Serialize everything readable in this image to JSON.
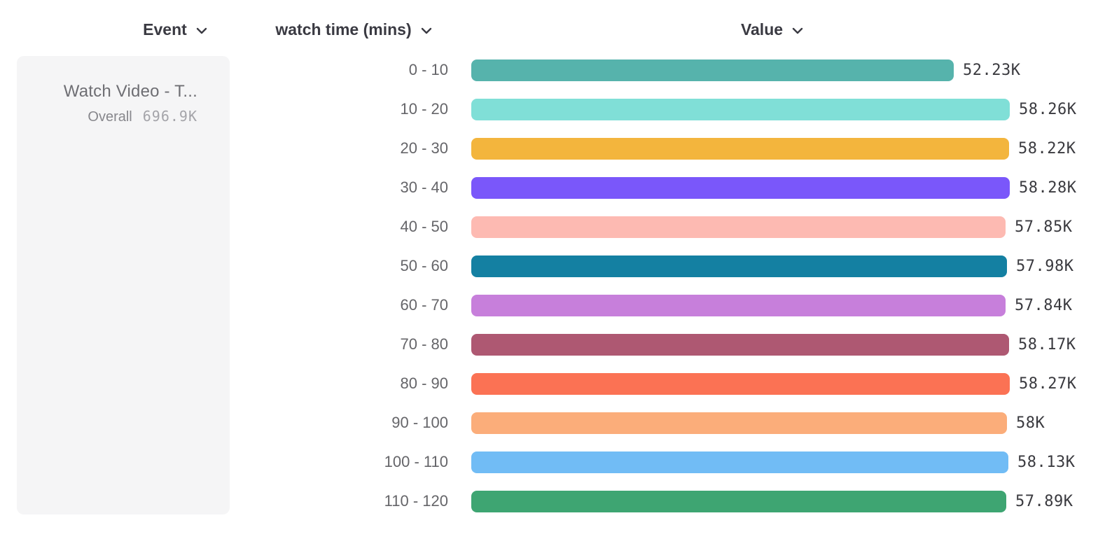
{
  "header": {
    "columns": [
      {
        "id": "event",
        "label": "Event",
        "icon": "chevron-down-icon"
      },
      {
        "id": "breakdown",
        "label": "watch time (mins)",
        "icon": "chevron-down-icon"
      },
      {
        "id": "value",
        "label": "Value",
        "icon": "chevron-down-icon"
      }
    ]
  },
  "legend": {
    "event_name": "Watch Video - T...",
    "overall_label": "Overall",
    "overall_value": "696.9K"
  },
  "chart_data": {
    "type": "bar",
    "orientation": "horizontal",
    "title": "",
    "xlabel": "Value",
    "ylabel": "watch time (mins)",
    "grid": false,
    "legend_position": "left",
    "xlim": [
      0,
      58.28
    ],
    "unit": "K",
    "categories": [
      "0 - 10",
      "10 - 20",
      "20 - 30",
      "30 - 40",
      "40 - 50",
      "50 - 60",
      "60 - 70",
      "70 - 80",
      "80 - 90",
      "90 - 100",
      "100 - 110",
      "110 - 120"
    ],
    "values": [
      52.23,
      58.26,
      58.22,
      58.28,
      57.85,
      57.98,
      57.84,
      58.17,
      58.27,
      58.0,
      58.13,
      57.89
    ],
    "value_labels": [
      "52.23K",
      "58.26K",
      "58.22K",
      "58.28K",
      "57.85K",
      "57.98K",
      "57.84K",
      "58.17K",
      "58.27K",
      "58K",
      "58.13K",
      "57.89K"
    ],
    "bar_colors": [
      "#56B3AC",
      "#80DFD7",
      "#F3B53D",
      "#7A57FA",
      "#FDBAB2",
      "#1480A2",
      "#C77FDB",
      "#AE5872",
      "#FB7254",
      "#FBAD7A",
      "#71BCF5",
      "#3EA572"
    ]
  },
  "colors": {
    "background": "#ffffff",
    "panel_background": "#f5f5f6",
    "header_text": "#3a3a42",
    "category_text": "#656569",
    "value_text": "#3a3a3f",
    "legend_title_text": "#6e6e73",
    "overall_label_text": "#87878c",
    "overall_value_text": "#a4a4a9"
  }
}
